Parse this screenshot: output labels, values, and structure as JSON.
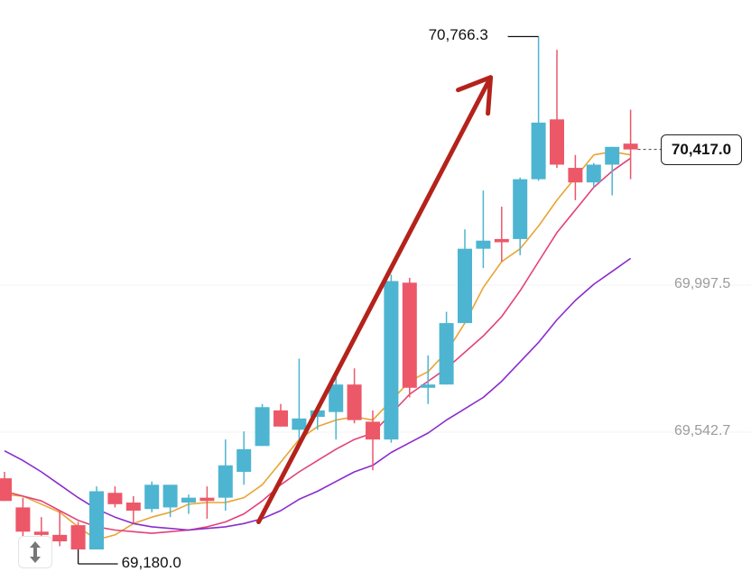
{
  "chart_data": {
    "type": "candlestick",
    "y_range": [
      68975,
      71000
    ],
    "axis_labels": [
      {
        "value": 69997.5,
        "text": "69,997.5"
      },
      {
        "value": 69542.7,
        "text": "69,542.7"
      }
    ],
    "current_price": {
      "value": 70417.0,
      "text": "70,417.0"
    },
    "high_marker": {
      "value": 70766.3,
      "text": "70,766.3",
      "index": 29
    },
    "low_marker": {
      "value": 69180.0,
      "text": "69,180.0",
      "index": 4
    },
    "candles": [
      {
        "o": 69400,
        "h": 69420,
        "l": 69330,
        "c": 69330
      },
      {
        "o": 69310,
        "h": 69340,
        "l": 69200,
        "c": 69235
      },
      {
        "o": 69235,
        "h": 69280,
        "l": 69190,
        "c": 69225
      },
      {
        "o": 69225,
        "h": 69300,
        "l": 69190,
        "c": 69205
      },
      {
        "o": 69255,
        "h": 69265,
        "l": 69180,
        "c": 69180
      },
      {
        "o": 69180,
        "h": 69375,
        "l": 69180,
        "c": 69360
      },
      {
        "o": 69355,
        "h": 69375,
        "l": 69310,
        "c": 69320
      },
      {
        "o": 69325,
        "h": 69345,
        "l": 69260,
        "c": 69300
      },
      {
        "o": 69305,
        "h": 69390,
        "l": 69295,
        "c": 69380
      },
      {
        "o": 69310,
        "h": 69380,
        "l": 69280,
        "c": 69380
      },
      {
        "o": 69325,
        "h": 69350,
        "l": 69290,
        "c": 69340
      },
      {
        "o": 69340,
        "h": 69375,
        "l": 69275,
        "c": 69330
      },
      {
        "o": 69340,
        "h": 69520,
        "l": 69300,
        "c": 69440
      },
      {
        "o": 69420,
        "h": 69545,
        "l": 69380,
        "c": 69490
      },
      {
        "o": 69500,
        "h": 69630,
        "l": 69500,
        "c": 69620
      },
      {
        "o": 69610,
        "h": 69630,
        "l": 69560,
        "c": 69560
      },
      {
        "o": 69550,
        "h": 69770,
        "l": 69500,
        "c": 69585
      },
      {
        "o": 69590,
        "h": 69625,
        "l": 69550,
        "c": 69610
      },
      {
        "o": 69605,
        "h": 69720,
        "l": 69520,
        "c": 69690
      },
      {
        "o": 69690,
        "h": 69740,
        "l": 69570,
        "c": 69580
      },
      {
        "o": 69575,
        "h": 69610,
        "l": 69425,
        "c": 69520
      },
      {
        "o": 69520,
        "h": 70030,
        "l": 69510,
        "c": 70010
      },
      {
        "o": 70005,
        "h": 70020,
        "l": 69650,
        "c": 69680
      },
      {
        "o": 69680,
        "h": 69780,
        "l": 69630,
        "c": 69690
      },
      {
        "o": 69690,
        "h": 69915,
        "l": 69690,
        "c": 69880
      },
      {
        "o": 69880,
        "h": 70170,
        "l": 69880,
        "c": 70110
      },
      {
        "o": 70110,
        "h": 70290,
        "l": 70050,
        "c": 70135
      },
      {
        "o": 70140,
        "h": 70240,
        "l": 70070,
        "c": 70130
      },
      {
        "o": 70140,
        "h": 70330,
        "l": 70090,
        "c": 70325
      },
      {
        "o": 70325,
        "h": 70766.3,
        "l": 70320,
        "c": 70500
      },
      {
        "o": 70510,
        "h": 70725,
        "l": 70360,
        "c": 70370
      },
      {
        "o": 70360,
        "h": 70400,
        "l": 70260,
        "c": 70315
      },
      {
        "o": 70315,
        "h": 70375,
        "l": 70300,
        "c": 70370
      },
      {
        "o": 70370,
        "h": 70425,
        "l": 70275,
        "c": 70425
      },
      {
        "o": 70435,
        "h": 70540,
        "l": 70325,
        "c": 70417
      }
    ],
    "ma_lines": [
      {
        "color": "#e8a534",
        "values": [
          69350,
          69345,
          69320,
          69295,
          69250,
          69210,
          69225,
          69260,
          69280,
          69295,
          69320,
          69325,
          69325,
          69340,
          69380,
          69450,
          69520,
          69560,
          69580,
          69590,
          69580,
          69640,
          69700,
          69730,
          69790,
          69880,
          69990,
          70070,
          70110,
          70180,
          70260,
          70330,
          70400,
          70410,
          70400
        ]
      },
      {
        "color": "#e2417a",
        "values": [
          69360,
          69345,
          69330,
          69300,
          69270,
          69250,
          69240,
          69235,
          69230,
          69235,
          69240,
          69250,
          69265,
          69290,
          69330,
          69380,
          69420,
          69455,
          69490,
          69520,
          69540,
          69600,
          69660,
          69700,
          69740,
          69790,
          69840,
          69900,
          69980,
          70070,
          70160,
          70230,
          70300,
          70350,
          70390
        ]
      },
      {
        "color": "#8a2ccc",
        "values": [
          69485,
          69455,
          69420,
          69380,
          69340,
          69305,
          69280,
          69260,
          69250,
          69245,
          69240,
          69245,
          69250,
          69260,
          69275,
          69300,
          69335,
          69360,
          69390,
          69420,
          69440,
          69480,
          69510,
          69540,
          69580,
          69615,
          69650,
          69700,
          69760,
          69820,
          69890,
          69950,
          70000,
          70040,
          70080
        ]
      }
    ],
    "colors": {
      "up": "#4db5d1",
      "down": "#ec5868",
      "arrow": "#b4231b"
    },
    "annotation": {
      "type": "arrow",
      "from_index": 13.8,
      "from_value": 69265,
      "to_index": 26.4,
      "to_value": 70640
    }
  }
}
